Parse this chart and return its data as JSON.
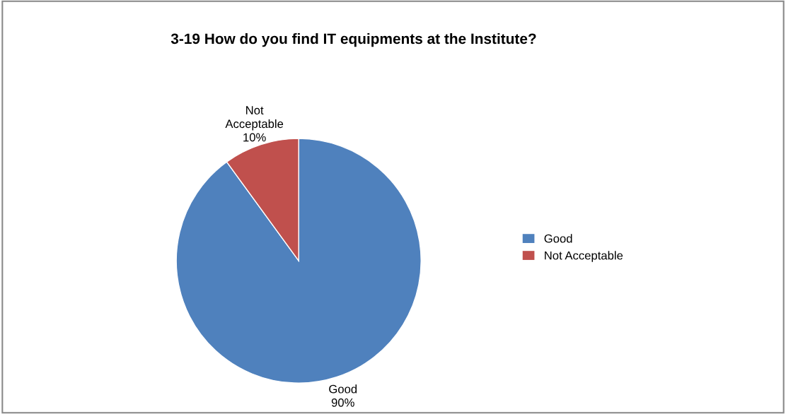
{
  "chart_data": {
    "type": "pie",
    "title": "3-19 How do you find IT equipments at the Institute?",
    "categories": [
      "Good",
      "Not Acceptable"
    ],
    "values": [
      90,
      10
    ],
    "colors": [
      "#4f81bd",
      "#c0504d"
    ],
    "value_labels": [
      "90%",
      "10%"
    ],
    "legend": "right"
  }
}
